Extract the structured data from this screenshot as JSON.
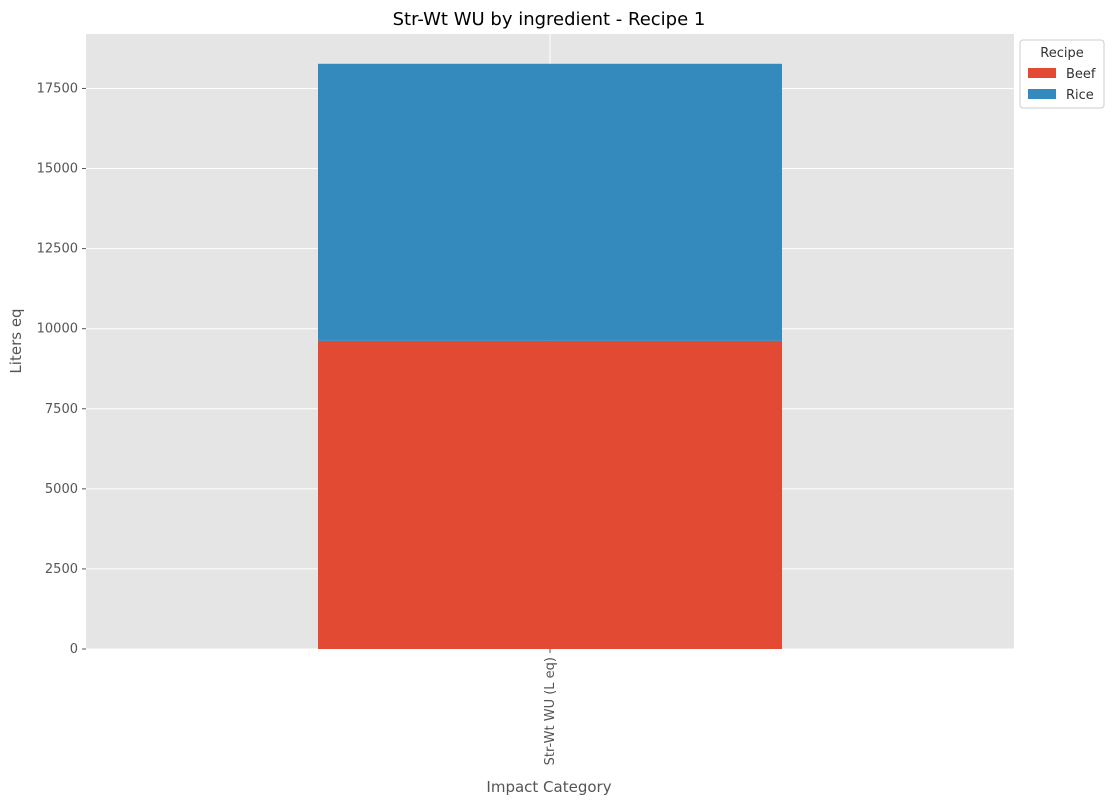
{
  "chart_data": {
    "type": "bar",
    "stacked": true,
    "title": "Str-Wt WU by ingredient - Recipe 1",
    "xlabel": "Impact Category",
    "ylabel": "Liters eq",
    "categories": [
      "Str-Wt WU (L eq)"
    ],
    "series": [
      {
        "name": "Beef",
        "values": [
          9620
        ],
        "color": "#E24A33"
      },
      {
        "name": "Rice",
        "values": [
          8650
        ],
        "color": "#348ABD"
      }
    ],
    "ylim": [
      0,
      19200
    ],
    "yticks": [
      0,
      2500,
      5000,
      7500,
      10000,
      12500,
      15000,
      17500
    ],
    "legend": {
      "title": "Recipe",
      "placement": "outside top-right"
    },
    "grid": true,
    "background": "#E5E5E5"
  }
}
